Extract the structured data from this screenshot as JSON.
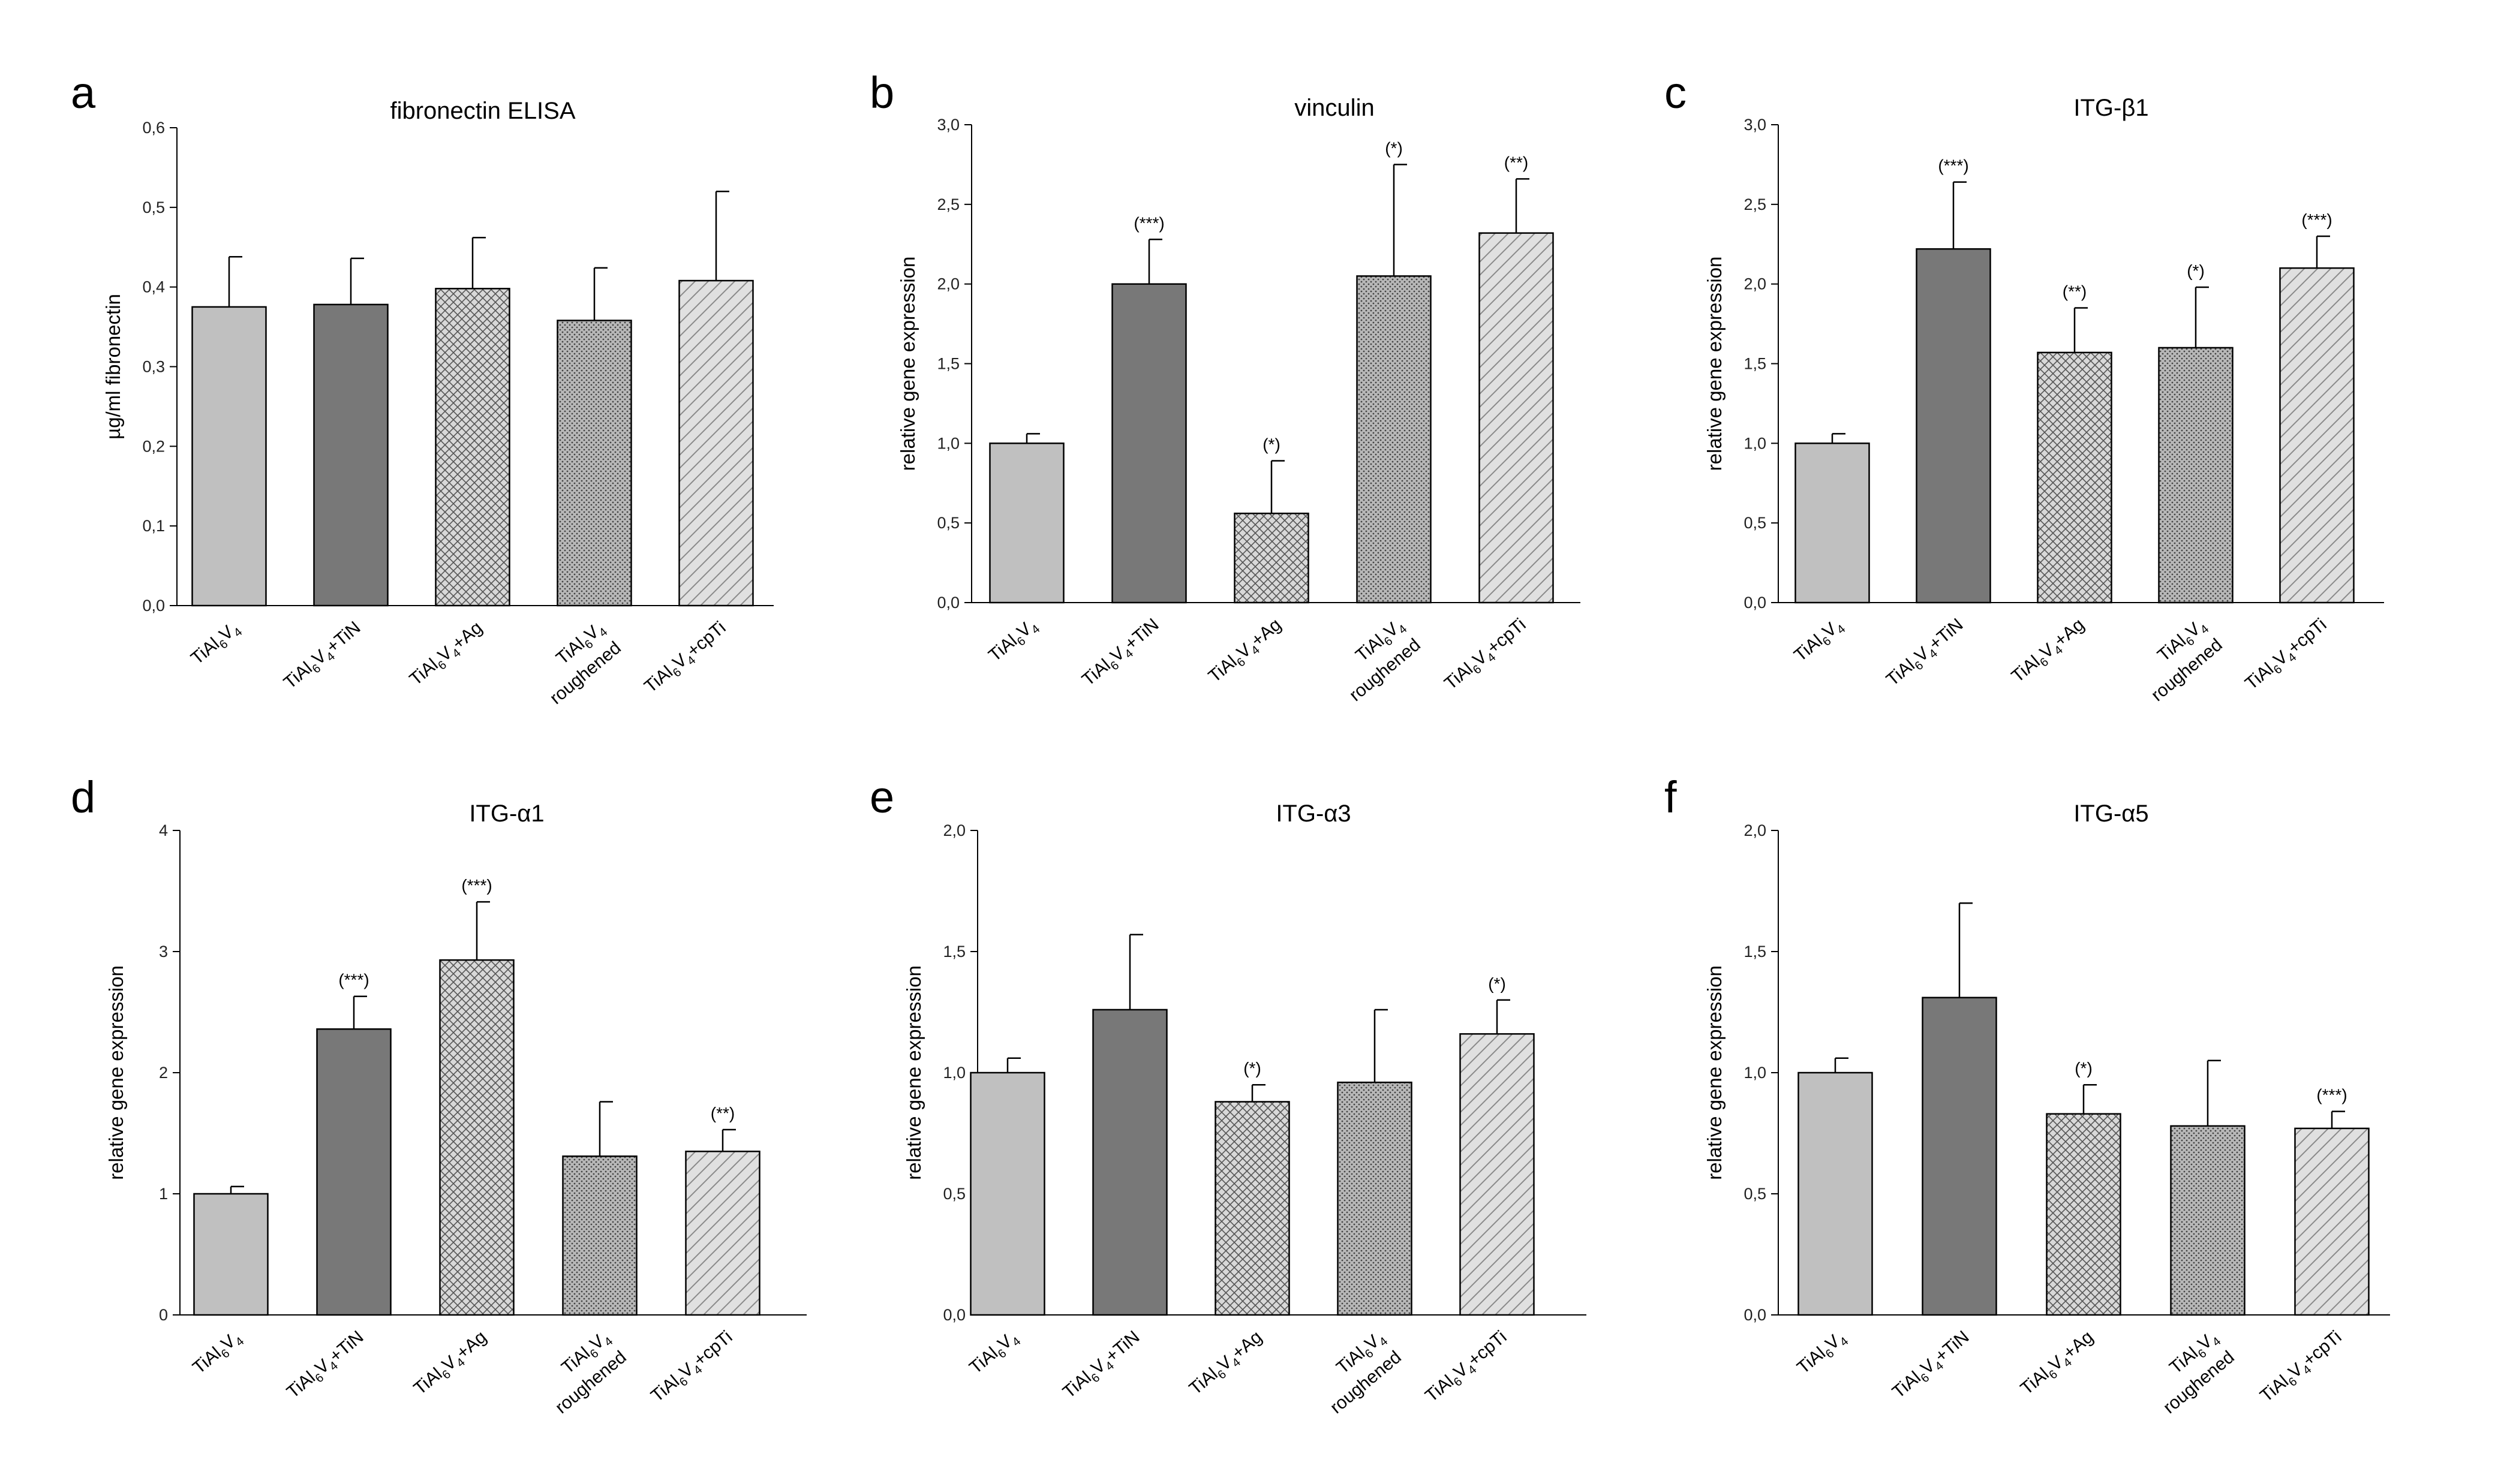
{
  "chart_data": [
    {
      "panel": "a",
      "type": "bar",
      "title": "fibronectin ELISA",
      "ylabel": "µg/ml fibronectin",
      "ylim": [
        0,
        0.6
      ],
      "yticks": [
        "0,0",
        "0,1",
        "0,2",
        "0,3",
        "0,4",
        "0,5",
        "0,6"
      ],
      "categories": [
        {
          "base": "TiAl",
          "s1": "6",
          "mid": "V",
          "s2": "4",
          "suffix": "",
          "line2": ""
        },
        {
          "base": "TiAl",
          "s1": "6",
          "mid": "V",
          "s2": "4",
          "suffix": "+TiN",
          "line2": ""
        },
        {
          "base": "TiAl",
          "s1": "6",
          "mid": "V",
          "s2": "4",
          "suffix": "+Ag",
          "line2": ""
        },
        {
          "base": "TiAl",
          "s1": "6",
          "mid": "V",
          "s2": "4",
          "suffix": "",
          "line2": "roughened"
        },
        {
          "base": "TiAl",
          "s1": "6",
          "mid": "V",
          "s2": "4",
          "suffix": "+cpTi",
          "line2": ""
        }
      ],
      "values": [
        0.375,
        0.378,
        0.398,
        0.358,
        0.408
      ],
      "errors": [
        0.063,
        0.058,
        0.064,
        0.066,
        0.112
      ],
      "significance": [
        "",
        "",
        "",
        "",
        ""
      ]
    },
    {
      "panel": "b",
      "type": "bar",
      "title": "vinculin",
      "ylabel": "relative gene expression",
      "ylim": [
        0,
        3.0
      ],
      "yticks": [
        "0,0",
        "0,5",
        "1,0",
        "1,5",
        "2,0",
        "2,5",
        "3,0"
      ],
      "categories": [
        {
          "base": "TiAl",
          "s1": "6",
          "mid": "V",
          "s2": "4",
          "suffix": "",
          "line2": ""
        },
        {
          "base": "TiAl",
          "s1": "6",
          "mid": "V",
          "s2": "4",
          "suffix": "+TiN",
          "line2": ""
        },
        {
          "base": "TiAl",
          "s1": "6",
          "mid": "V",
          "s2": "4",
          "suffix": "+Ag",
          "line2": ""
        },
        {
          "base": "TiAl",
          "s1": "6",
          "mid": "V",
          "s2": "4",
          "suffix": "",
          "line2": "roughened"
        },
        {
          "base": "TiAl",
          "s1": "6",
          "mid": "V",
          "s2": "4",
          "suffix": "+cpTi",
          "line2": ""
        }
      ],
      "values": [
        1.0,
        2.0,
        0.56,
        2.05,
        2.32
      ],
      "errors": [
        0.06,
        0.28,
        0.33,
        0.7,
        0.34
      ],
      "significance": [
        "",
        "(***)",
        "(*)",
        "(*)",
        "(**)"
      ]
    },
    {
      "panel": "c",
      "type": "bar",
      "title": "ITG-β1",
      "ylabel": "relative gene expression",
      "ylim": [
        0,
        3.0
      ],
      "yticks": [
        "0,0",
        "0,5",
        "1,0",
        "1,5",
        "2,0",
        "2,5",
        "3,0"
      ],
      "categories": [
        {
          "base": "TiAl",
          "s1": "6",
          "mid": "V",
          "s2": "4",
          "suffix": "",
          "line2": ""
        },
        {
          "base": "TiAl",
          "s1": "6",
          "mid": "V",
          "s2": "4",
          "suffix": "+TiN",
          "line2": ""
        },
        {
          "base": "TiAl",
          "s1": "6",
          "mid": "V",
          "s2": "4",
          "suffix": "+Ag",
          "line2": ""
        },
        {
          "base": "TiAl",
          "s1": "6",
          "mid": "V",
          "s2": "4",
          "suffix": "",
          "line2": "roughened"
        },
        {
          "base": "TiAl",
          "s1": "6",
          "mid": "V",
          "s2": "4",
          "suffix": "+cpTi",
          "line2": ""
        }
      ],
      "values": [
        1.0,
        2.22,
        1.57,
        1.6,
        2.1
      ],
      "errors": [
        0.06,
        0.42,
        0.28,
        0.38,
        0.2
      ],
      "significance": [
        "",
        "(***)",
        "(**)",
        "(*)",
        "(***)"
      ]
    },
    {
      "panel": "d",
      "type": "bar",
      "title": "ITG-α1",
      "ylabel": "relative gene expression",
      "ylim": [
        0,
        4
      ],
      "yticks": [
        "0",
        "1",
        "2",
        "3",
        "4"
      ],
      "categories": [
        {
          "base": "TiAl",
          "s1": "6",
          "mid": "V",
          "s2": "4",
          "suffix": "",
          "line2": ""
        },
        {
          "base": "TiAl",
          "s1": "6",
          "mid": "V",
          "s2": "4",
          "suffix": "+TiN",
          "line2": ""
        },
        {
          "base": "TiAl",
          "s1": "6",
          "mid": "V",
          "s2": "4",
          "suffix": "+Ag",
          "line2": ""
        },
        {
          "base": "TiAl",
          "s1": "6",
          "mid": "V",
          "s2": "4",
          "suffix": "",
          "line2": "roughened"
        },
        {
          "base": "TiAl",
          "s1": "6",
          "mid": "V",
          "s2": "4",
          "suffix": "+cpTi",
          "line2": ""
        }
      ],
      "values": [
        1.0,
        2.36,
        2.93,
        1.31,
        1.35
      ],
      "errors": [
        0.06,
        0.27,
        0.48,
        0.45,
        0.18
      ],
      "significance": [
        "",
        "(***)",
        "(***)",
        "",
        "(**)"
      ]
    },
    {
      "panel": "e",
      "type": "bar",
      "title": "ITG-α3",
      "ylabel": "relative gene expression",
      "ylim": [
        0,
        2.0
      ],
      "yticks": [
        "0,0",
        "0,5",
        "1,0",
        "1,5",
        "2,0"
      ],
      "categories": [
        {
          "base": "TiAl",
          "s1": "6",
          "mid": "V",
          "s2": "4",
          "suffix": "",
          "line2": ""
        },
        {
          "base": "TiAl",
          "s1": "6",
          "mid": "V",
          "s2": "4",
          "suffix": "+TiN",
          "line2": ""
        },
        {
          "base": "TiAl",
          "s1": "6",
          "mid": "V",
          "s2": "4",
          "suffix": "+Ag",
          "line2": ""
        },
        {
          "base": "TiAl",
          "s1": "6",
          "mid": "V",
          "s2": "4",
          "suffix": "",
          "line2": "roughened"
        },
        {
          "base": "TiAl",
          "s1": "6",
          "mid": "V",
          "s2": "4",
          "suffix": "+cpTi",
          "line2": ""
        }
      ],
      "values": [
        1.0,
        1.26,
        0.88,
        0.96,
        1.16
      ],
      "errors": [
        0.06,
        0.31,
        0.07,
        0.3,
        0.14
      ],
      "significance": [
        "",
        "",
        "(*)",
        "",
        "(*)"
      ]
    },
    {
      "panel": "f",
      "type": "bar",
      "title": "ITG-α5",
      "ylabel": "relative gene expression",
      "ylim": [
        0,
        2.0
      ],
      "yticks": [
        "0,0",
        "0,5",
        "1,0",
        "1,5",
        "2,0"
      ],
      "categories": [
        {
          "base": "TiAl",
          "s1": "6",
          "mid": "V",
          "s2": "4",
          "suffix": "",
          "line2": ""
        },
        {
          "base": "TiAl",
          "s1": "6",
          "mid": "V",
          "s2": "4",
          "suffix": "+TiN",
          "line2": ""
        },
        {
          "base": "TiAl",
          "s1": "6",
          "mid": "V",
          "s2": "4",
          "suffix": "+Ag",
          "line2": ""
        },
        {
          "base": "TiAl",
          "s1": "6",
          "mid": "V",
          "s2": "4",
          "suffix": "",
          "line2": "roughened"
        },
        {
          "base": "TiAl",
          "s1": "6",
          "mid": "V",
          "s2": "4",
          "suffix": "+cpTi",
          "line2": ""
        }
      ],
      "values": [
        1.0,
        1.31,
        0.83,
        0.78,
        0.77
      ],
      "errors": [
        0.06,
        0.39,
        0.12,
        0.27,
        0.07
      ],
      "significance": [
        "",
        "",
        "(*)",
        "",
        "(***)"
      ]
    }
  ],
  "styles": {
    "fills": [
      "#c0c0c0",
      "#787878",
      "crosshatch",
      "dots",
      "diagonal"
    ],
    "fill_colors": {
      "solid_light": "#c0c0c0",
      "solid_dark": "#787878",
      "hatch_bg": "#d8d8d8",
      "hatch_line": "#555555",
      "dots_bg": "#b8b8b8",
      "dots_dot": "#444444",
      "diag_bg": "#e0e0e0",
      "diag_line": "#8a8a8a"
    },
    "grid": false,
    "legend": "none"
  }
}
